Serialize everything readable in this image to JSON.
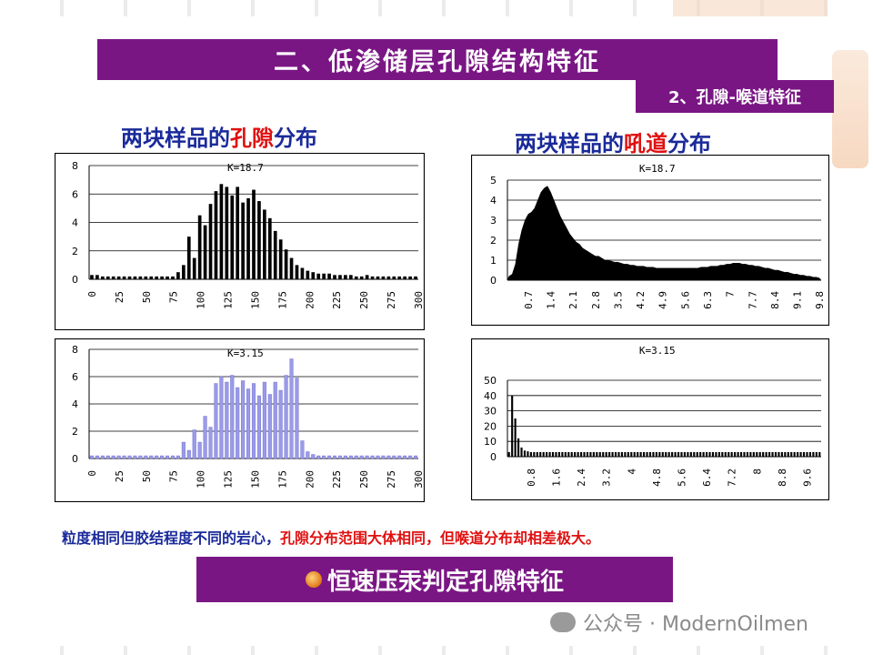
{
  "slide": {
    "title": "二、低渗储层孔隙结构特征",
    "subtitle": "2、孔隙-喉道特征",
    "left_heading": {
      "prefix": "两块样品的",
      "highlight": "孔隙",
      "suffix": "分布"
    },
    "right_heading": {
      "prefix": "两块样品的",
      "highlight": "吼道",
      "suffix": "分布"
    },
    "caption": {
      "prefix": "粒度相同但胶结程度不同的岩心，",
      "highlight": "孔隙分布范围大体相同，但喉道分布却相差极大。"
    },
    "footer": "恒速压汞判定孔隙特征",
    "watermark": "公众号 · ModernOilmen",
    "colors": {
      "banner": "#7a1684",
      "blue": "#1a2a9a",
      "red": "#e01010",
      "black_bar": "#000000",
      "blue_bar": "#9a9ae8"
    }
  },
  "chart_data": [
    {
      "type": "bar",
      "label": "K=18.7",
      "x": [
        0,
        5,
        10,
        15,
        20,
        25,
        30,
        35,
        40,
        45,
        50,
        55,
        60,
        65,
        70,
        75,
        80,
        85,
        90,
        95,
        100,
        105,
        110,
        115,
        120,
        125,
        130,
        135,
        140,
        145,
        150,
        155,
        160,
        165,
        170,
        175,
        180,
        185,
        190,
        195,
        200,
        205,
        210,
        215,
        220,
        225,
        230,
        235,
        240,
        245,
        250,
        255,
        260,
        265,
        270,
        275,
        280,
        285,
        290,
        295,
        300
      ],
      "values": [
        0.3,
        0.3,
        0.2,
        0.2,
        0.2,
        0.2,
        0.2,
        0.2,
        0.2,
        0.2,
        0.2,
        0.2,
        0.2,
        0.2,
        0.2,
        0.2,
        0.5,
        1.0,
        3.0,
        1.5,
        4.5,
        3.8,
        5.3,
        6.2,
        6.7,
        6.5,
        5.9,
        6.5,
        5.4,
        5.7,
        6.3,
        5.5,
        4.9,
        4.3,
        3.4,
        2.8,
        2.1,
        1.5,
        1.0,
        0.8,
        0.6,
        0.5,
        0.4,
        0.4,
        0.4,
        0.3,
        0.3,
        0.3,
        0.3,
        0.2,
        0.2,
        0.3,
        0.2,
        0.2,
        0.2,
        0.2,
        0.2,
        0.2,
        0.2,
        0.2,
        0.2
      ],
      "xticks": [
        "0",
        "25",
        "50",
        "75",
        "100",
        "125",
        "150",
        "175",
        "200",
        "225",
        "250",
        "275",
        "300"
      ],
      "yticks": [
        "0",
        "2",
        "4",
        "6",
        "8"
      ],
      "ylim": [
        0,
        8
      ],
      "grid": true
    },
    {
      "type": "area",
      "label": "K=18.7",
      "x_start": 0.1,
      "x_step": 0.1,
      "values": [
        0.2,
        0.3,
        0.8,
        1.8,
        2.5,
        3.0,
        3.3,
        3.4,
        3.6,
        4.0,
        4.4,
        4.6,
        4.7,
        4.4,
        4.0,
        3.6,
        3.2,
        2.9,
        2.6,
        2.3,
        2.1,
        1.9,
        1.8,
        1.6,
        1.5,
        1.4,
        1.3,
        1.2,
        1.2,
        1.1,
        1.0,
        1.0,
        0.95,
        0.9,
        0.9,
        0.85,
        0.8,
        0.8,
        0.75,
        0.75,
        0.7,
        0.7,
        0.7,
        0.65,
        0.65,
        0.65,
        0.6,
        0.6,
        0.6,
        0.6,
        0.6,
        0.6,
        0.6,
        0.6,
        0.6,
        0.6,
        0.6,
        0.6,
        0.6,
        0.6,
        0.65,
        0.65,
        0.65,
        0.7,
        0.7,
        0.7,
        0.75,
        0.75,
        0.8,
        0.8,
        0.85,
        0.85,
        0.85,
        0.8,
        0.8,
        0.75,
        0.75,
        0.7,
        0.7,
        0.65,
        0.6,
        0.6,
        0.55,
        0.5,
        0.5,
        0.45,
        0.4,
        0.4,
        0.35,
        0.3,
        0.3,
        0.25,
        0.25,
        0.2,
        0.2,
        0.15,
        0.15,
        0.1
      ],
      "xticks": [
        "0.7",
        "1.4",
        "2.1",
        "2.8",
        "3.5",
        "4.2",
        "4.9",
        "5.6",
        "6.3",
        "7",
        "7.7",
        "8.4",
        "9.1",
        "9.8"
      ],
      "yticks": [
        "0",
        "1",
        "2",
        "3",
        "4",
        "5"
      ],
      "ylim": [
        0,
        5
      ],
      "grid": true
    },
    {
      "type": "bar",
      "label": "K=3.15",
      "x": [
        0,
        5,
        10,
        15,
        20,
        25,
        30,
        35,
        40,
        45,
        50,
        55,
        60,
        65,
        70,
        75,
        80,
        85,
        90,
        95,
        100,
        105,
        110,
        115,
        120,
        125,
        130,
        135,
        140,
        145,
        150,
        155,
        160,
        165,
        170,
        175,
        180,
        185,
        190,
        195,
        200,
        205,
        210,
        215,
        220,
        225,
        230,
        235,
        240,
        245,
        250,
        255,
        260,
        265,
        270,
        275,
        280,
        285,
        290,
        295,
        300
      ],
      "values": [
        0.2,
        0.2,
        0.2,
        0.2,
        0.2,
        0.2,
        0.2,
        0.2,
        0.2,
        0.2,
        0.2,
        0.2,
        0.2,
        0.2,
        0.2,
        0.2,
        0.2,
        1.2,
        0.6,
        2.1,
        1.2,
        3.1,
        2.3,
        5.5,
        6.0,
        5.6,
        6.1,
        5.2,
        5.7,
        5.1,
        5.5,
        4.6,
        5.6,
        4.7,
        5.6,
        5.0,
        6.1,
        7.3,
        5.9,
        1.3,
        0.5,
        0.3,
        0.2,
        0.2,
        0.2,
        0.2,
        0.2,
        0.2,
        0.2,
        0.2,
        0.2,
        0.2,
        0.2,
        0.2,
        0.2,
        0.2,
        0.2,
        0.2,
        0.2,
        0.2,
        0.2
      ],
      "xticks": [
        "0",
        "25",
        "50",
        "75",
        "100",
        "125",
        "150",
        "175",
        "200",
        "225",
        "250",
        "275",
        "300"
      ],
      "yticks": [
        "0",
        "2",
        "4",
        "6",
        "8"
      ],
      "ylim": [
        0,
        8
      ],
      "grid": true
    },
    {
      "type": "bar",
      "label": "K=3.15",
      "x_start": 0.1,
      "x_step": 0.1,
      "values": [
        3,
        40,
        25,
        12,
        6,
        4,
        3.5,
        3,
        3,
        3,
        3,
        3,
        3,
        3,
        3,
        3,
        3,
        3,
        3,
        3,
        3,
        3,
        3,
        3,
        3,
        3,
        3,
        3,
        3,
        3,
        3,
        3,
        3,
        3,
        3,
        3,
        3,
        3,
        3,
        3,
        3,
        3,
        3,
        3,
        3,
        3,
        3,
        3,
        3,
        3,
        3,
        3,
        3,
        3,
        3,
        3,
        3,
        3,
        3,
        3,
        3,
        3,
        3,
        3,
        3,
        3,
        3,
        3,
        3,
        3,
        3,
        3,
        3,
        3,
        3,
        3,
        3,
        3,
        3,
        3,
        3,
        3,
        3,
        3,
        3,
        3,
        3,
        3,
        3,
        3,
        3,
        3,
        3,
        3,
        3,
        3,
        3,
        3,
        3,
        3
      ],
      "xticks": [
        "0.8",
        "1.6",
        "2.4",
        "3.2",
        "4",
        "4.8",
        "5.6",
        "6.4",
        "7.2",
        "8",
        "8.8",
        "9.6"
      ],
      "yticks": [
        "0",
        "10",
        "20",
        "30",
        "40",
        "50"
      ],
      "ylim": [
        0,
        50
      ],
      "grid": true
    }
  ]
}
